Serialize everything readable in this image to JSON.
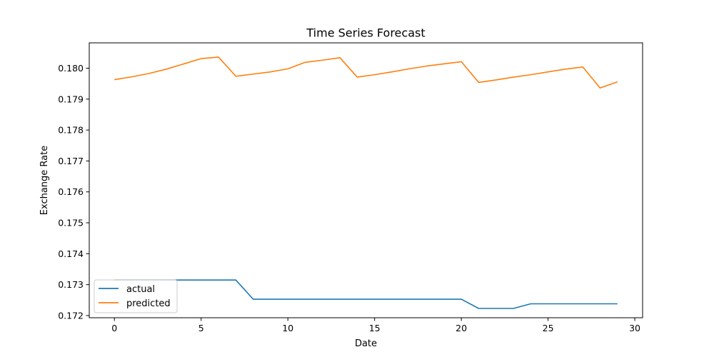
{
  "chart_data": {
    "type": "line",
    "title": "Time Series Forecast",
    "xlabel": "Date",
    "ylabel": "Exchange Rate",
    "xlim": [
      -1.45,
      30.45
    ],
    "ylim": [
      0.17193,
      0.18082
    ],
    "xticks": [
      0,
      5,
      10,
      15,
      20,
      25,
      30
    ],
    "yticks": [
      0.172,
      0.173,
      0.174,
      0.175,
      0.176,
      0.177,
      0.178,
      0.179,
      0.18
    ],
    "grid": false,
    "legend_position": "lower-left",
    "x": [
      0,
      1,
      2,
      3,
      4,
      5,
      6,
      7,
      8,
      9,
      10,
      11,
      12,
      13,
      14,
      15,
      16,
      17,
      18,
      19,
      20,
      21,
      22,
      23,
      24,
      25,
      26,
      27,
      28,
      29
    ],
    "series": [
      {
        "name": "actual",
        "color": "#1f77b4",
        "values": [
          0.17315,
          0.17315,
          0.17315,
          0.17315,
          0.17315,
          0.17315,
          0.17315,
          0.17315,
          0.17253,
          0.17253,
          0.17253,
          0.17253,
          0.17253,
          0.17253,
          0.17253,
          0.17253,
          0.17253,
          0.17253,
          0.17253,
          0.17253,
          0.17253,
          0.17223,
          0.17223,
          0.17223,
          0.17238,
          0.17238,
          0.17238,
          0.17238,
          0.17238,
          0.17238
        ]
      },
      {
        "name": "predicted",
        "color": "#ff7f0e",
        "values": [
          0.17963,
          0.17972,
          0.17983,
          0.17997,
          0.18014,
          0.18031,
          0.18036,
          0.17974,
          0.17981,
          0.17988,
          0.17998,
          0.18019,
          0.18026,
          0.18034,
          0.17971,
          0.17979,
          0.17988,
          0.17998,
          0.18007,
          0.18014,
          0.18021,
          0.17954,
          0.17962,
          0.17971,
          0.17979,
          0.17988,
          0.17997,
          0.18004,
          0.17936,
          0.17956
        ]
      }
    ]
  }
}
